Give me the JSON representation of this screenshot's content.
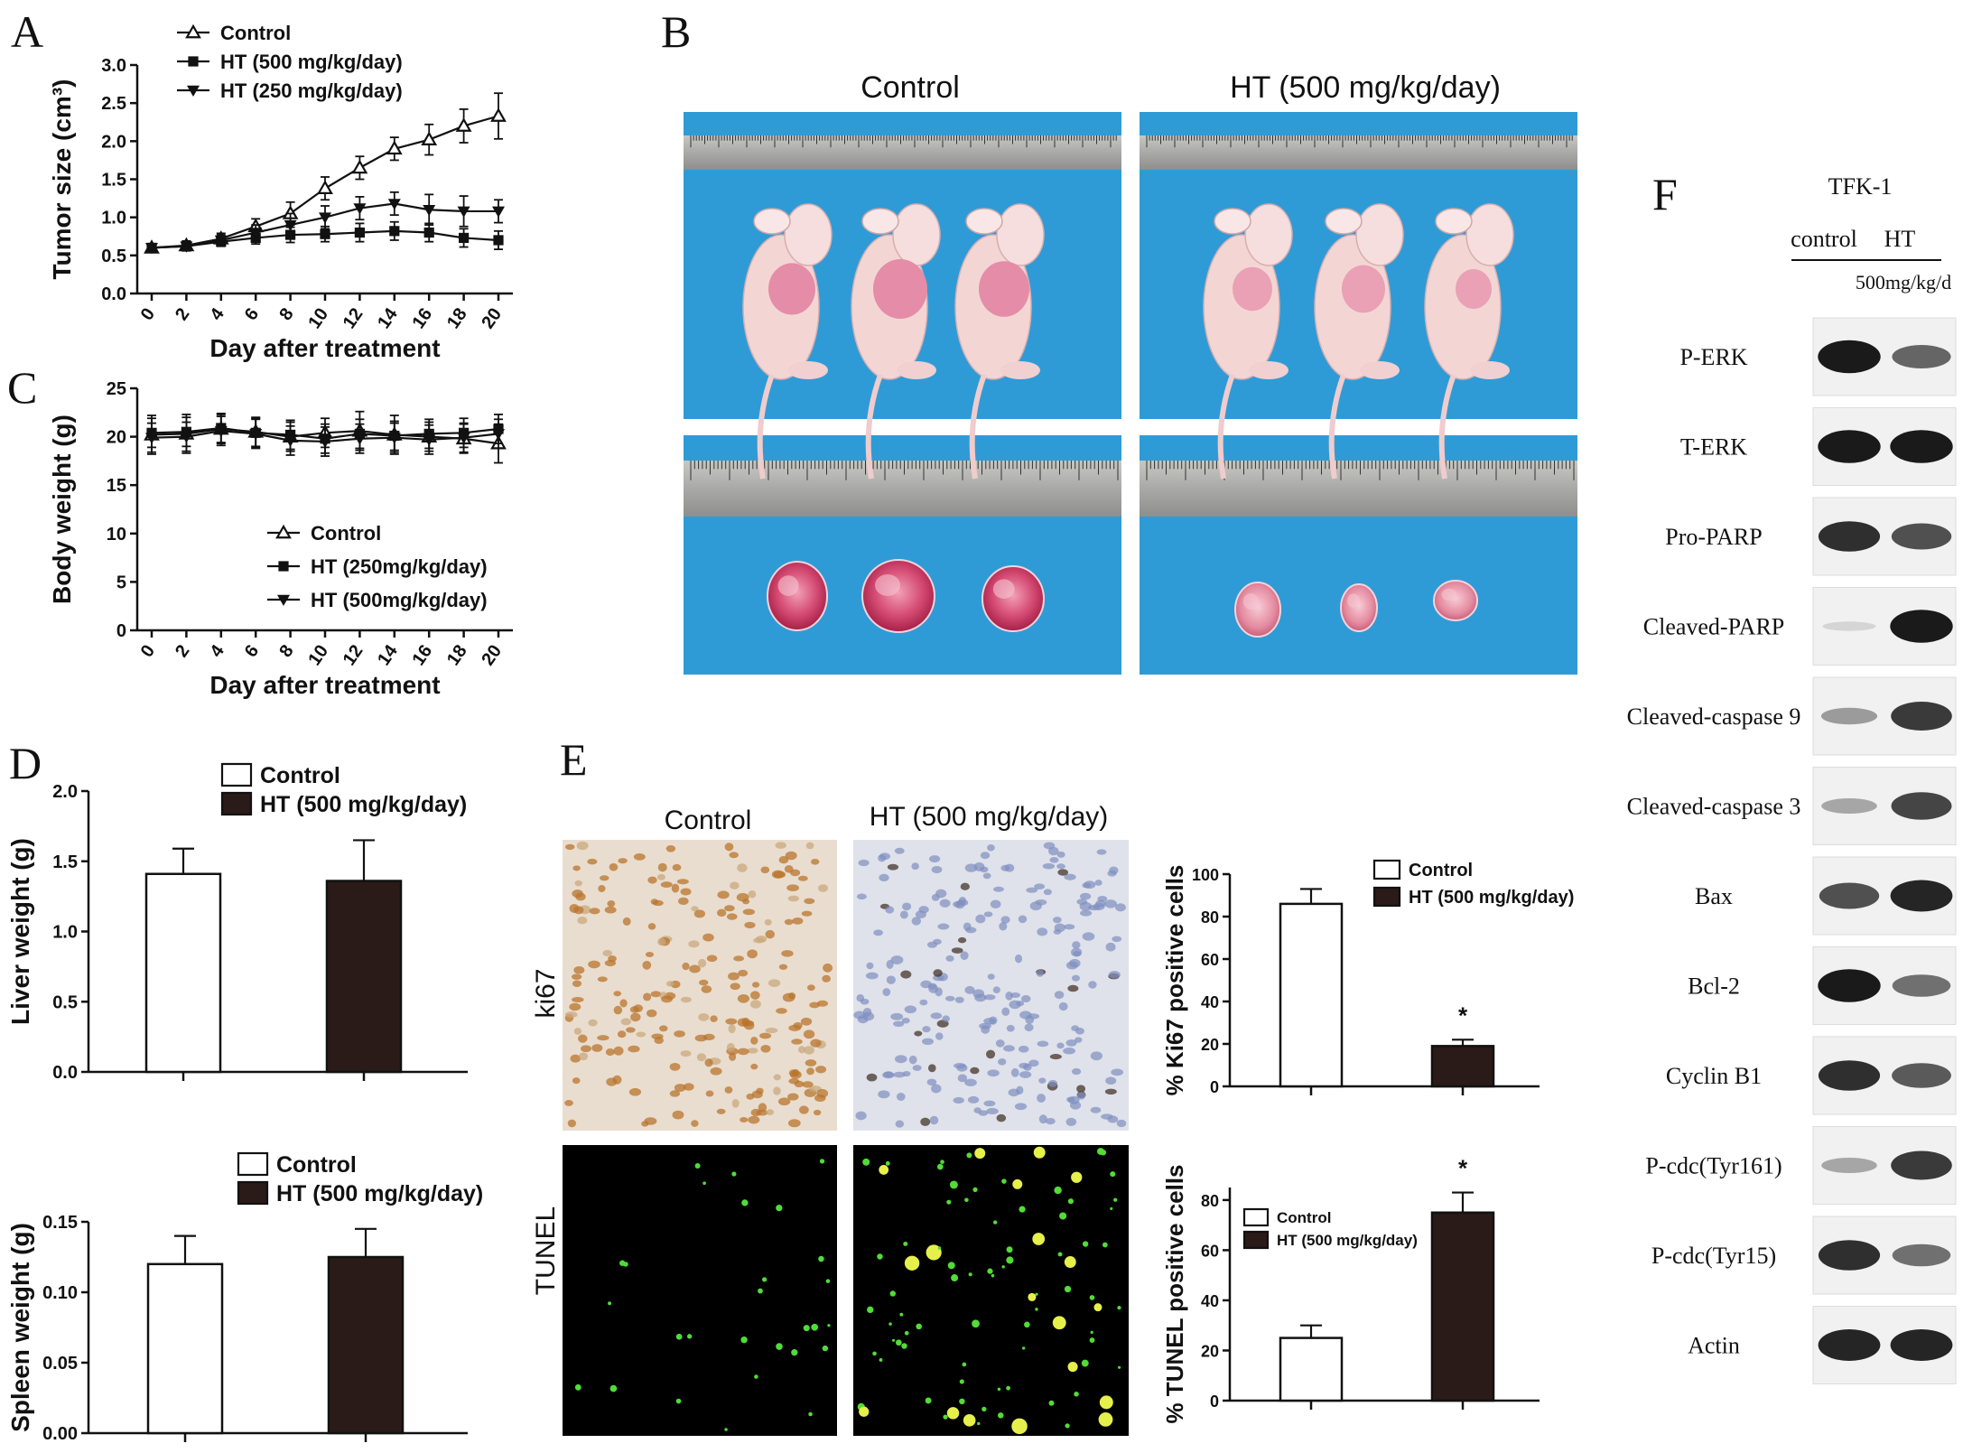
{
  "panels": {
    "A": "A",
    "B": "B",
    "C": "C",
    "D": "D",
    "E": "E",
    "F": "F"
  },
  "panel_b": {
    "header_left": "Control",
    "header_right": "HT (500 mg/kg/day)"
  },
  "panel_e": {
    "header_left": "Control",
    "header_right": "HT (500 mg/kg/day)",
    "row1": "ki67",
    "row2": "TUNEL"
  },
  "panel_f": {
    "cell_line": "TFK-1",
    "col_control": "control",
    "col_ht": "HT",
    "dose": "500mg/kg/d",
    "proteins": [
      "P-ERK",
      "T-ERK",
      "Pro-PARP",
      "Cleaved-PARP",
      "Cleaved-caspase 9",
      "Cleaved-caspase 3",
      "Bax",
      "Bcl-2",
      "Cyclin B1",
      "P-cdc(Tyr161)",
      "P-cdc(Tyr15)",
      "Actin"
    ],
    "control_intensity": [
      0.95,
      0.95,
      0.85,
      0.08,
      0.35,
      0.3,
      0.7,
      0.95,
      0.85,
      0.3,
      0.85,
      0.9
    ],
    "ht_intensity": [
      0.6,
      0.95,
      0.7,
      0.95,
      0.8,
      0.75,
      0.9,
      0.55,
      0.65,
      0.8,
      0.55,
      0.9
    ]
  },
  "chart_data": [
    {
      "id": "A",
      "type": "line",
      "xlabel": "Day after treatment",
      "ylabel": "Tumor size (cm³)",
      "x": [
        0,
        2,
        4,
        6,
        8,
        10,
        12,
        14,
        16,
        18,
        20
      ],
      "xticks": [
        "0",
        "2",
        "4",
        "6",
        "8",
        "10",
        "12",
        "14",
        "16",
        "18",
        "20"
      ],
      "yticks": [
        "0.0",
        "0.5",
        "1.0",
        "1.5",
        "2.0",
        "2.5",
        "3.0"
      ],
      "ylim": [
        0,
        3.0
      ],
      "series": [
        {
          "name": "Control",
          "marker": "triangle-up-open",
          "values": [
            0.6,
            0.63,
            0.72,
            0.88,
            1.05,
            1.38,
            1.65,
            1.9,
            2.02,
            2.2,
            2.33
          ],
          "err": [
            0.05,
            0.06,
            0.07,
            0.1,
            0.15,
            0.15,
            0.15,
            0.15,
            0.2,
            0.22,
            0.3
          ]
        },
        {
          "name": "HT (500 mg/kg/day)",
          "marker": "square-filled",
          "values": [
            0.6,
            0.62,
            0.68,
            0.73,
            0.77,
            0.78,
            0.8,
            0.82,
            0.8,
            0.73,
            0.7
          ],
          "err": [
            0.05,
            0.05,
            0.06,
            0.08,
            0.1,
            0.1,
            0.12,
            0.12,
            0.12,
            0.12,
            0.12
          ]
        },
        {
          "name": "HT (250 mg/kg/day)",
          "marker": "triangle-down-filled",
          "values": [
            0.6,
            0.62,
            0.7,
            0.8,
            0.9,
            1.0,
            1.12,
            1.18,
            1.1,
            1.08,
            1.08
          ],
          "err": [
            0.05,
            0.06,
            0.07,
            0.1,
            0.15,
            0.15,
            0.15,
            0.15,
            0.2,
            0.2,
            0.15
          ]
        }
      ]
    },
    {
      "id": "C",
      "type": "line",
      "xlabel": "Day after treatment",
      "ylabel": "Body weight (g)",
      "x": [
        0,
        2,
        4,
        6,
        8,
        10,
        12,
        14,
        16,
        18,
        20
      ],
      "xticks": [
        "0",
        "2",
        "4",
        "6",
        "8",
        "10",
        "12",
        "14",
        "16",
        "18",
        "20"
      ],
      "yticks": [
        "0",
        "5",
        "10",
        "15",
        "20",
        "25"
      ],
      "ylim": [
        0,
        25
      ],
      "series": [
        {
          "name": "Control",
          "marker": "triangle-up-open",
          "values": [
            20.2,
            20.3,
            20.8,
            20.5,
            20.0,
            20.4,
            20.6,
            20.2,
            20.0,
            19.8,
            19.3
          ],
          "err": [
            2,
            2,
            1.5,
            1.5,
            1.5,
            1.5,
            2,
            2,
            1.5,
            1.5,
            2
          ]
        },
        {
          "name": "HT (250mg/kg/day)",
          "marker": "square-filled",
          "values": [
            20.4,
            20.5,
            20.9,
            20.4,
            20.2,
            19.8,
            20.3,
            20.1,
            20.3,
            20.4,
            20.8
          ],
          "err": [
            1.5,
            1.5,
            1.5,
            1.5,
            1.5,
            1.5,
            1.5,
            1.5,
            1.5,
            1.5,
            1.5
          ]
        },
        {
          "name": "HT (500mg/kg/day)",
          "marker": "triangle-down-filled",
          "values": [
            19.9,
            20.0,
            20.6,
            20.3,
            19.6,
            19.5,
            19.8,
            19.9,
            19.7,
            19.9,
            20.3
          ],
          "err": [
            1.5,
            1.5,
            1.5,
            1.5,
            1.5,
            1.5,
            1.5,
            1.5,
            1.5,
            1.5,
            1.5
          ]
        }
      ]
    },
    {
      "id": "D-liver",
      "type": "bar",
      "ylabel": "Liver weight (g)",
      "yticks": [
        "0.0",
        "0.5",
        "1.0",
        "1.5",
        "2.0"
      ],
      "ylim": [
        0,
        2.0
      ],
      "categories": [
        "Control",
        "HT (500 mg/kg/day)"
      ],
      "values": [
        1.41,
        1.36
      ],
      "err": [
        0.18,
        0.29
      ]
    },
    {
      "id": "D-spleen",
      "type": "bar",
      "ylabel": "Spleen weight (g)",
      "yticks": [
        "0.00",
        "0.05",
        "0.10",
        "0.15"
      ],
      "ylim": [
        0,
        0.15
      ],
      "categories": [
        "Control",
        "HT (500 mg/kg/day)"
      ],
      "values": [
        0.12,
        0.125
      ],
      "err": [
        0.02,
        0.02
      ]
    },
    {
      "id": "E-ki67",
      "type": "bar",
      "ylabel": "% Ki67 positive cells",
      "yticks": [
        "0",
        "20",
        "40",
        "60",
        "80",
        "100"
      ],
      "ylim": [
        0,
        100
      ],
      "categories": [
        "Control",
        "HT (500 mg/kg/day)"
      ],
      "values": [
        86,
        19
      ],
      "err": [
        7,
        3
      ],
      "annotation": "*"
    },
    {
      "id": "E-tunel",
      "type": "bar",
      "ylabel": "% TUNEL positive cells",
      "yticks": [
        "0",
        "20",
        "40",
        "60",
        "80"
      ],
      "ylim": [
        0,
        85
      ],
      "categories": [
        "Control",
        "HT (500 mg/kg/day)"
      ],
      "values": [
        25,
        75
      ],
      "err": [
        5,
        8
      ],
      "annotation": "*"
    }
  ]
}
